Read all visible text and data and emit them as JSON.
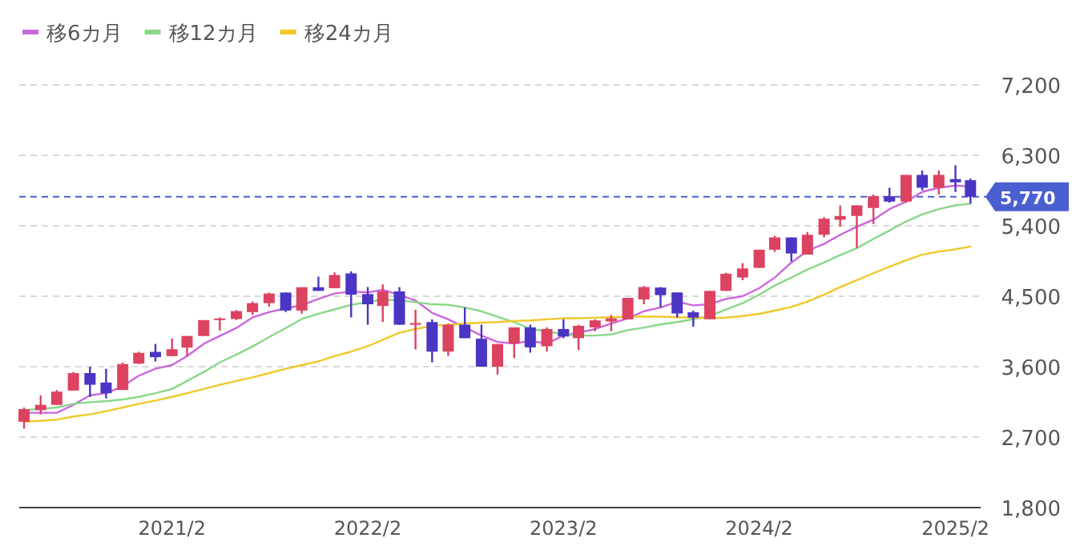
{
  "chart_data": {
    "type": "candlestick",
    "x": [
      "2020-05",
      "2020-06",
      "2020-07",
      "2020-08",
      "2020-09",
      "2020-10",
      "2020-11",
      "2020-12",
      "2021-01",
      "2021-02",
      "2021-03",
      "2021-04",
      "2021-05",
      "2021-06",
      "2021-07",
      "2021-08",
      "2021-09",
      "2021-10",
      "2021-11",
      "2021-12",
      "2022-01",
      "2022-02",
      "2022-03",
      "2022-04",
      "2022-05",
      "2022-06",
      "2022-07",
      "2022-08",
      "2022-09",
      "2022-10",
      "2022-11",
      "2022-12",
      "2023-01",
      "2023-02",
      "2023-03",
      "2023-04",
      "2023-05",
      "2023-06",
      "2023-07",
      "2023-08",
      "2023-09",
      "2023-10",
      "2023-11",
      "2023-12",
      "2024-01",
      "2024-02",
      "2024-03",
      "2024-04",
      "2024-05",
      "2024-06",
      "2024-07",
      "2024-08",
      "2024-09",
      "2024-10",
      "2024-11",
      "2024-12",
      "2025-01",
      "2025-02",
      "2025-03"
    ],
    "ohlc": [
      [
        2896,
        3078,
        2808,
        3058
      ],
      [
        3044,
        3234,
        2990,
        3112
      ],
      [
        3112,
        3302,
        3112,
        3281
      ],
      [
        3295,
        3532,
        3295,
        3518
      ],
      [
        3518,
        3600,
        3214,
        3369
      ],
      [
        3397,
        3573,
        3193,
        3261
      ],
      [
        3302,
        3654,
        3302,
        3633
      ],
      [
        3640,
        3790,
        3633,
        3776
      ],
      [
        3789,
        3891,
        3667,
        3721
      ],
      [
        3735,
        3958,
        3735,
        3823
      ],
      [
        3843,
        3992,
        3735,
        3992
      ],
      [
        3992,
        4195,
        3992,
        4195
      ],
      [
        4195,
        4229,
        4060,
        4216
      ],
      [
        4209,
        4324,
        4195,
        4310
      ],
      [
        4297,
        4432,
        4263,
        4412
      ],
      [
        4412,
        4547,
        4365,
        4534
      ],
      [
        4547,
        4547,
        4297,
        4317
      ],
      [
        4317,
        4615,
        4277,
        4615
      ],
      [
        4615,
        4750,
        4568,
        4568
      ],
      [
        4602,
        4805,
        4602,
        4771
      ],
      [
        4791,
        4818,
        4229,
        4520
      ],
      [
        4527,
        4617,
        4136,
        4397
      ],
      [
        4376,
        4651,
        4170,
        4562
      ],
      [
        4562,
        4617,
        4136,
        4136
      ],
      [
        4136,
        4328,
        3820,
        4157
      ],
      [
        4170,
        4205,
        3655,
        3792
      ],
      [
        3792,
        4150,
        3737,
        4136
      ],
      [
        4136,
        4356,
        3964,
        3964
      ],
      [
        3957,
        4136,
        3600,
        3600
      ],
      [
        3600,
        3889,
        3497,
        3889
      ],
      [
        3895,
        4102,
        3710,
        4102
      ],
      [
        4102,
        4136,
        3779,
        3847
      ],
      [
        3861,
        4102,
        3792,
        4081
      ],
      [
        4081,
        4205,
        3964,
        3985
      ],
      [
        3964,
        4136,
        3813,
        4122
      ],
      [
        4102,
        4205,
        4053,
        4191
      ],
      [
        4177,
        4260,
        4053,
        4218
      ],
      [
        4205,
        4479,
        4205,
        4479
      ],
      [
        4459,
        4631,
        4397,
        4617
      ],
      [
        4610,
        4617,
        4356,
        4514
      ],
      [
        4548,
        4548,
        4227,
        4280
      ],
      [
        4295,
        4316,
        4111,
        4227
      ],
      [
        4206,
        4568,
        4206,
        4568
      ],
      [
        4568,
        4800,
        4568,
        4787
      ],
      [
        4739,
        4923,
        4705,
        4855
      ],
      [
        4862,
        5094,
        4862,
        5094
      ],
      [
        5094,
        5272,
        5067,
        5251
      ],
      [
        5251,
        5251,
        4944,
        5046
      ],
      [
        5032,
        5320,
        5032,
        5285
      ],
      [
        5285,
        5511,
        5251,
        5490
      ],
      [
        5477,
        5661,
        5388,
        5525
      ],
      [
        5525,
        5661,
        5115,
        5661
      ],
      [
        5627,
        5797,
        5422,
        5777
      ],
      [
        5777,
        5886,
        5695,
        5709
      ],
      [
        5709,
        6050,
        5695,
        6050
      ],
      [
        6050,
        6105,
        5852,
        5886
      ],
      [
        5886,
        6105,
        5798,
        6050
      ],
      [
        5996,
        6173,
        5832,
        5955
      ],
      [
        5982,
        6003,
        5682,
        5770
      ]
    ],
    "colors": [
      "#dc4360",
      "#dc4360",
      "#dc4360",
      "#dc4360",
      "#4b35c4",
      "#4b35c4",
      "#dc4360",
      "#dc4360",
      "#4b35c4",
      "#dc4360",
      "#dc4360",
      "#dc4360",
      "#dc4360",
      "#dc4360",
      "#dc4360",
      "#dc4360",
      "#4b35c4",
      "#dc4360",
      "#4b35c4",
      "#dc4360",
      "#4b35c4",
      "#4b35c4",
      "#dc4360",
      "#4b35c4",
      "#dc4360",
      "#4b35c4",
      "#dc4360",
      "#4b35c4",
      "#4b35c4",
      "#dc4360",
      "#dc4360",
      "#4b35c4",
      "#dc4360",
      "#4b35c4",
      "#dc4360",
      "#dc4360",
      "#dc4360",
      "#dc4360",
      "#dc4360",
      "#4b35c4",
      "#4b35c4",
      "#4b35c4",
      "#dc4360",
      "#dc4360",
      "#dc4360",
      "#dc4360",
      "#dc4360",
      "#4b35c4",
      "#dc4360",
      "#dc4360",
      "#dc4360",
      "#dc4360",
      "#dc4360",
      "#4b35c4",
      "#dc4360",
      "#4b35c4",
      "#dc4360",
      "#4b35c4",
      "#4b35c4"
    ],
    "series": [
      {
        "name": "移6カ月",
        "type": "line",
        "color": "#cc66dd",
        "values": [
          3011,
          3011,
          3011,
          3112,
          3234,
          3261,
          3349,
          3485,
          3573,
          3620,
          3735,
          3891,
          3992,
          4094,
          4229,
          4297,
          4344,
          4385,
          4466,
          4534,
          4560,
          4548,
          4582,
          4514,
          4445,
          4287,
          4205,
          4102,
          3998,
          3916,
          3895,
          3930,
          3895,
          3998,
          4033,
          4081,
          4150,
          4218,
          4308,
          4356,
          4430,
          4384,
          4398,
          4466,
          4500,
          4602,
          4739,
          4930,
          5081,
          5169,
          5285,
          5388,
          5477,
          5613,
          5709,
          5832,
          5886,
          5914,
          5900
        ]
      },
      {
        "name": "移12カ月",
        "type": "line",
        "color": "#88d888",
        "values": [
          3044,
          3060,
          3078,
          3126,
          3146,
          3160,
          3180,
          3214,
          3261,
          3315,
          3417,
          3532,
          3654,
          3755,
          3857,
          3979,
          4094,
          4209,
          4277,
          4331,
          4390,
          4424,
          4459,
          4445,
          4424,
          4397,
          4390,
          4356,
          4308,
          4239,
          4170,
          4081,
          4053,
          4012,
          3998,
          3998,
          4012,
          4067,
          4100,
          4140,
          4170,
          4206,
          4247,
          4329,
          4411,
          4520,
          4637,
          4739,
          4842,
          4930,
          5026,
          5115,
          5231,
          5340,
          5456,
          5545,
          5613,
          5661,
          5682
        ]
      },
      {
        "name": "移24カ月",
        "type": "line",
        "color": "#f0c828",
        "values": [
          2896,
          2910,
          2923,
          2963,
          2990,
          3031,
          3078,
          3126,
          3166,
          3214,
          3261,
          3315,
          3369,
          3417,
          3464,
          3518,
          3573,
          3620,
          3667,
          3735,
          3792,
          3861,
          3944,
          4033,
          4081,
          4122,
          4136,
          4150,
          4163,
          4170,
          4184,
          4191,
          4205,
          4218,
          4218,
          4225,
          4232,
          4239,
          4239,
          4239,
          4232,
          4227,
          4220,
          4227,
          4247,
          4275,
          4316,
          4363,
          4432,
          4520,
          4616,
          4705,
          4794,
          4876,
          4958,
          5030,
          5070,
          5100,
          5135
        ]
      }
    ],
    "xlim": [
      "2020-04-22",
      "2025-03-20"
    ],
    "xticks": [
      {
        "value": "2021-02",
        "label": "2021/2"
      },
      {
        "value": "2022-02",
        "label": "2022/2"
      },
      {
        "value": "2023-02",
        "label": "2023/2"
      },
      {
        "value": "2024-02",
        "label": "2024/2"
      },
      {
        "value": "2025-02",
        "label": "2025/2"
      }
    ],
    "ylim": [
      1800,
      7200
    ],
    "yticks": [
      {
        "value": 1800,
        "label": "1,800"
      },
      {
        "value": 2700,
        "label": "2,700"
      },
      {
        "value": 3600,
        "label": "3,600"
      },
      {
        "value": 4500,
        "label": "4,500"
      },
      {
        "value": 5400,
        "label": "5,400"
      },
      {
        "value": 6300,
        "label": "6,300"
      },
      {
        "value": 7200,
        "label": "7,200"
      }
    ],
    "ref_lines": [
      {
        "axis": "y",
        "value": 5770,
        "label": "5,770",
        "color": "#4a5fd0",
        "line_style": "dashed"
      }
    ],
    "grid": "y",
    "legend": "top left"
  }
}
